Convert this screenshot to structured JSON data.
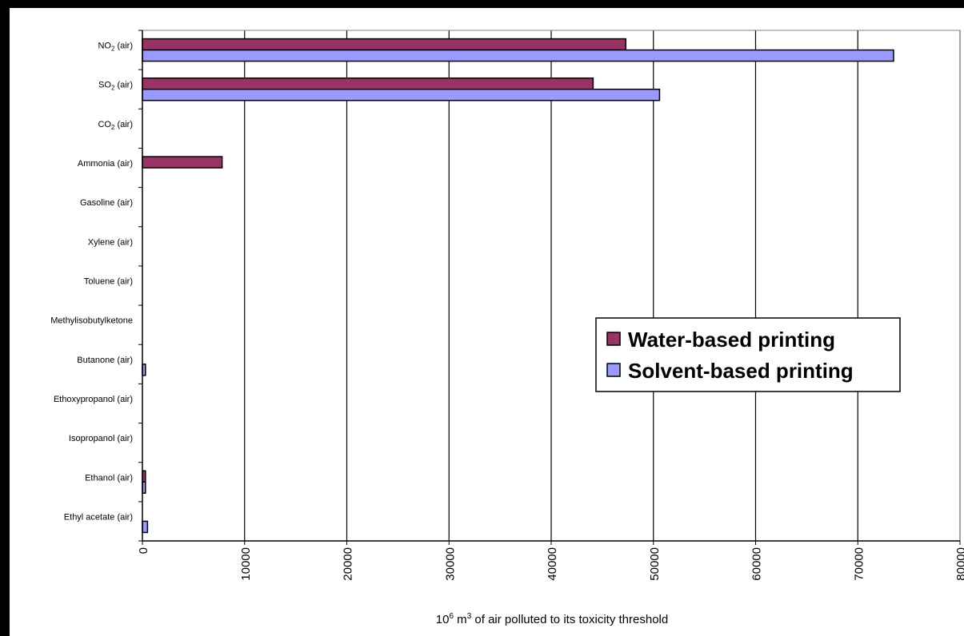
{
  "chart_data": {
    "type": "bar",
    "orientation": "horizontal",
    "categories": [
      "NO2 (air)",
      "SO2 (air)",
      "CO2 (air)",
      "Ammonia (air)",
      "Gasoline (air)",
      "Xylene (air)",
      "Toluene (air)",
      "Methylisobutylketone",
      "Butanone (air)",
      "Ethoxypropanol (air)",
      "Isopropanol (air)",
      "Ethanol (air)",
      "Ethyl acetate (air)"
    ],
    "category_labels": {
      "NO2 (air)": {
        "main": "NO",
        "sub": "2",
        "rest": " (air)"
      },
      "SO2 (air)": {
        "main": "SO",
        "sub": "2",
        "rest": " (air)"
      },
      "CO2 (air)": {
        "main": "CO",
        "sub": "2",
        "rest": " (air)"
      }
    },
    "series": [
      {
        "name": "Water-based printing",
        "color": "#993366",
        "values": [
          47300,
          44100,
          0,
          7800,
          0,
          0,
          0,
          0,
          0,
          0,
          0,
          300,
          0
        ]
      },
      {
        "name": "Solvent-based printing",
        "color": "#9999ff",
        "values": [
          73500,
          50600,
          0,
          0,
          0,
          0,
          0,
          0,
          300,
          0,
          0,
          300,
          500
        ]
      }
    ],
    "xlim": [
      0,
      80000
    ],
    "xticks": [
      "0",
      "10000",
      "20000",
      "30000",
      "40000",
      "50000",
      "60000",
      "70000",
      "80000"
    ],
    "xlabel": {
      "pre": "10",
      "sup1": "6",
      "mid": " m",
      "sup2": "3",
      "post": " of air polluted to its toxicity threshold"
    },
    "title": "",
    "grid": {
      "vertical": true,
      "horizontal": false
    },
    "legend": {
      "position": "center-right"
    }
  }
}
